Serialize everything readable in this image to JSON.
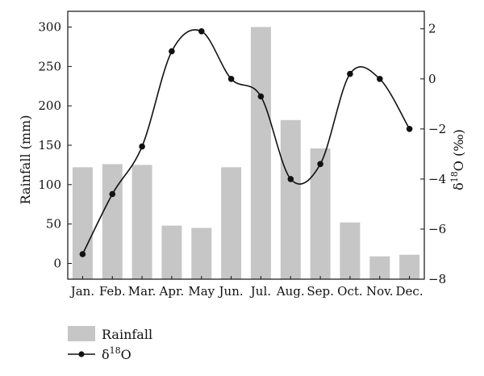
{
  "chart_data": {
    "type": "bar+line",
    "categories": [
      "Jan.",
      "Feb.",
      "Mar.",
      "Apr.",
      "May",
      "Jun.",
      "Jul.",
      "Aug.",
      "Sep.",
      "Oct.",
      "Nov.",
      "Dec."
    ],
    "series": [
      {
        "name": "Rainfall",
        "type": "bar",
        "axis": "left",
        "values": [
          122,
          126,
          125,
          48,
          45,
          122,
          300,
          182,
          146,
          52,
          9,
          11
        ]
      },
      {
        "name": "δ18O",
        "type": "line",
        "axis": "right",
        "values": [
          -7.0,
          -4.6,
          -2.7,
          1.1,
          1.9,
          0.0,
          -0.7,
          -4.0,
          -3.4,
          0.2,
          0.0,
          -2.0
        ]
      }
    ],
    "y_left": {
      "label": "Rainfall (mm)",
      "ylim": [
        -20,
        320
      ],
      "ticks": [
        0,
        50,
        100,
        150,
        200,
        250,
        300
      ]
    },
    "y_right": {
      "label": "δ18O (‰)",
      "ylim": [
        -8,
        2.7
      ],
      "ticks": [
        2,
        0,
        -2,
        -4,
        -6,
        -8
      ],
      "tick_labels": [
        "2",
        "0",
        "−2",
        "−4",
        "−6",
        "−8"
      ]
    },
    "grid": false,
    "legend_position": "bottom-left",
    "colors": {
      "bar": "#c6c6c6",
      "line": "#111111"
    }
  }
}
